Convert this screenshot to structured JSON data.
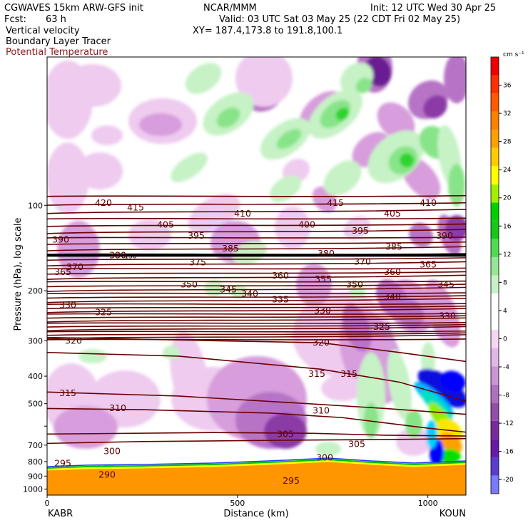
{
  "header": {
    "line1_left": "CGWAVES 15km ARW-GFS init",
    "line1_mid": "NCAR/MMM",
    "line1_right": "Init: 12 UTC Wed 30 Apr 25",
    "fcst_label": "Fcst:",
    "fcst_value": "63 h",
    "valid": "Valid: 03 UTC Sat 03 May 25 (22 CDT Fri 02 May 25)",
    "xy": "XY= 187.4,173.8 to 191.8,100.1",
    "field1": "Vertical velocity",
    "field2": "Boundary Layer Tracer",
    "field3": "Potential Temperature",
    "field3_color": "#8b1a1a"
  },
  "chart_data": {
    "type": "heatmap",
    "title": "Vertical velocity / Boundary Layer Tracer / Potential Temperature",
    "xlabel": "Distance (km)",
    "ylabel": "Pressure (hPa), log scale",
    "x_ticks": [
      0,
      500,
      1000
    ],
    "xlim": [
      0,
      1100
    ],
    "y_ticks": [
      100,
      200,
      300,
      400,
      500,
      600,
      700,
      800,
      900,
      1000
    ],
    "y_tick_labels": [
      "100",
      "200",
      "300",
      "400",
      "500",
      "",
      "700",
      "800",
      "900",
      "1000"
    ],
    "ylim": [
      1050,
      30
    ],
    "y_scale": "log",
    "endpoints": {
      "left": "KABR",
      "right": "KOUN"
    },
    "colorbar": {
      "units": "cm s⁻¹",
      "labels": [
        -20,
        -16,
        -12,
        -8,
        -4,
        0,
        4,
        8,
        12,
        16,
        20,
        24,
        28,
        32,
        36
      ],
      "colors": [
        "#7a7aff",
        "#5a3ccf",
        "#6a18a8",
        "#7a2a9a",
        "#944ea8",
        "#b070c2",
        "#cb94d6",
        "#e2b6e6",
        "#f2d6f2",
        "#ffffff",
        "#ffffff",
        "#c8f0c8",
        "#96e696",
        "#50dc50",
        "#18c818",
        "#00d000",
        "#a0f000",
        "#ffff00",
        "#ffcc00",
        "#ffa000",
        "#ff8000",
        "#ff5a00",
        "#ff3000",
        "#f00000"
      ]
    },
    "theta_labels": [
      {
        "v": "420",
        "x": 145,
        "p": 98
      },
      {
        "v": "415",
        "x": 190,
        "p": 102
      },
      {
        "v": "410",
        "x": 340,
        "p": 107
      },
      {
        "v": "415",
        "x": 470,
        "p": 98
      },
      {
        "v": "410",
        "x": 600,
        "p": 98
      },
      {
        "v": "405",
        "x": 232,
        "p": 117
      },
      {
        "v": "405",
        "x": 550,
        "p": 107
      },
      {
        "v": "400",
        "x": 430,
        "p": 117
      },
      {
        "v": "395",
        "x": 275,
        "p": 128
      },
      {
        "v": "395",
        "x": 505,
        "p": 123
      },
      {
        "v": "390",
        "x": 85,
        "p": 132
      },
      {
        "v": "390",
        "x": 623,
        "p": 128
      },
      {
        "v": "385",
        "x": 323,
        "p": 142
      },
      {
        "v": "385",
        "x": 552,
        "p": 140
      },
      {
        "v": "380",
        "x": 165,
        "p": 150
      },
      {
        "v": "380",
        "x": 457,
        "p": 148
      },
      {
        "v": "375",
        "x": 277,
        "p": 159
      },
      {
        "v": "370",
        "x": 105,
        "p": 165
      },
      {
        "v": "370",
        "x": 508,
        "p": 158
      },
      {
        "v": "365",
        "x": 88,
        "p": 172
      },
      {
        "v": "365",
        "x": 600,
        "p": 162
      },
      {
        "v": "360",
        "x": 393,
        "p": 177
      },
      {
        "v": "360",
        "x": 550,
        "p": 172
      },
      {
        "v": "355",
        "x": 453,
        "p": 182
      },
      {
        "v": "350",
        "x": 265,
        "p": 190
      },
      {
        "v": "350",
        "x": 497,
        "p": 190
      },
      {
        "v": "345",
        "x": 320,
        "p": 198
      },
      {
        "v": "345",
        "x": 625,
        "p": 190
      },
      {
        "v": "340",
        "x": 350,
        "p": 205
      },
      {
        "v": "340",
        "x": 550,
        "p": 210
      },
      {
        "v": "335",
        "x": 393,
        "p": 215
      },
      {
        "v": "330",
        "x": 95,
        "p": 225
      },
      {
        "v": "330",
        "x": 452,
        "p": 235
      },
      {
        "v": "330",
        "x": 627,
        "p": 245
      },
      {
        "v": "325",
        "x": 145,
        "p": 238
      },
      {
        "v": "325",
        "x": 535,
        "p": 268
      },
      {
        "v": "320",
        "x": 103,
        "p": 300
      },
      {
        "v": "320",
        "x": 450,
        "p": 305
      },
      {
        "v": "315",
        "x": 95,
        "p": 460
      },
      {
        "v": "315",
        "x": 444,
        "p": 393
      },
      {
        "v": "315",
        "x": 489,
        "p": 393
      },
      {
        "v": "310",
        "x": 165,
        "p": 518
      },
      {
        "v": "310",
        "x": 450,
        "p": 530
      },
      {
        "v": "305",
        "x": 400,
        "p": 640
      },
      {
        "v": "305",
        "x": 500,
        "p": 695
      },
      {
        "v": "300",
        "x": 157,
        "p": 735
      },
      {
        "v": "300",
        "x": 455,
        "p": 775
      },
      {
        "v": "295",
        "x": 88,
        "p": 813
      },
      {
        "v": "295",
        "x": 408,
        "p": 935
      },
      {
        "v": "290",
        "x": 150,
        "p": 890
      }
    ],
    "thick_line": {
      "p": 150,
      "label": "150"
    }
  }
}
